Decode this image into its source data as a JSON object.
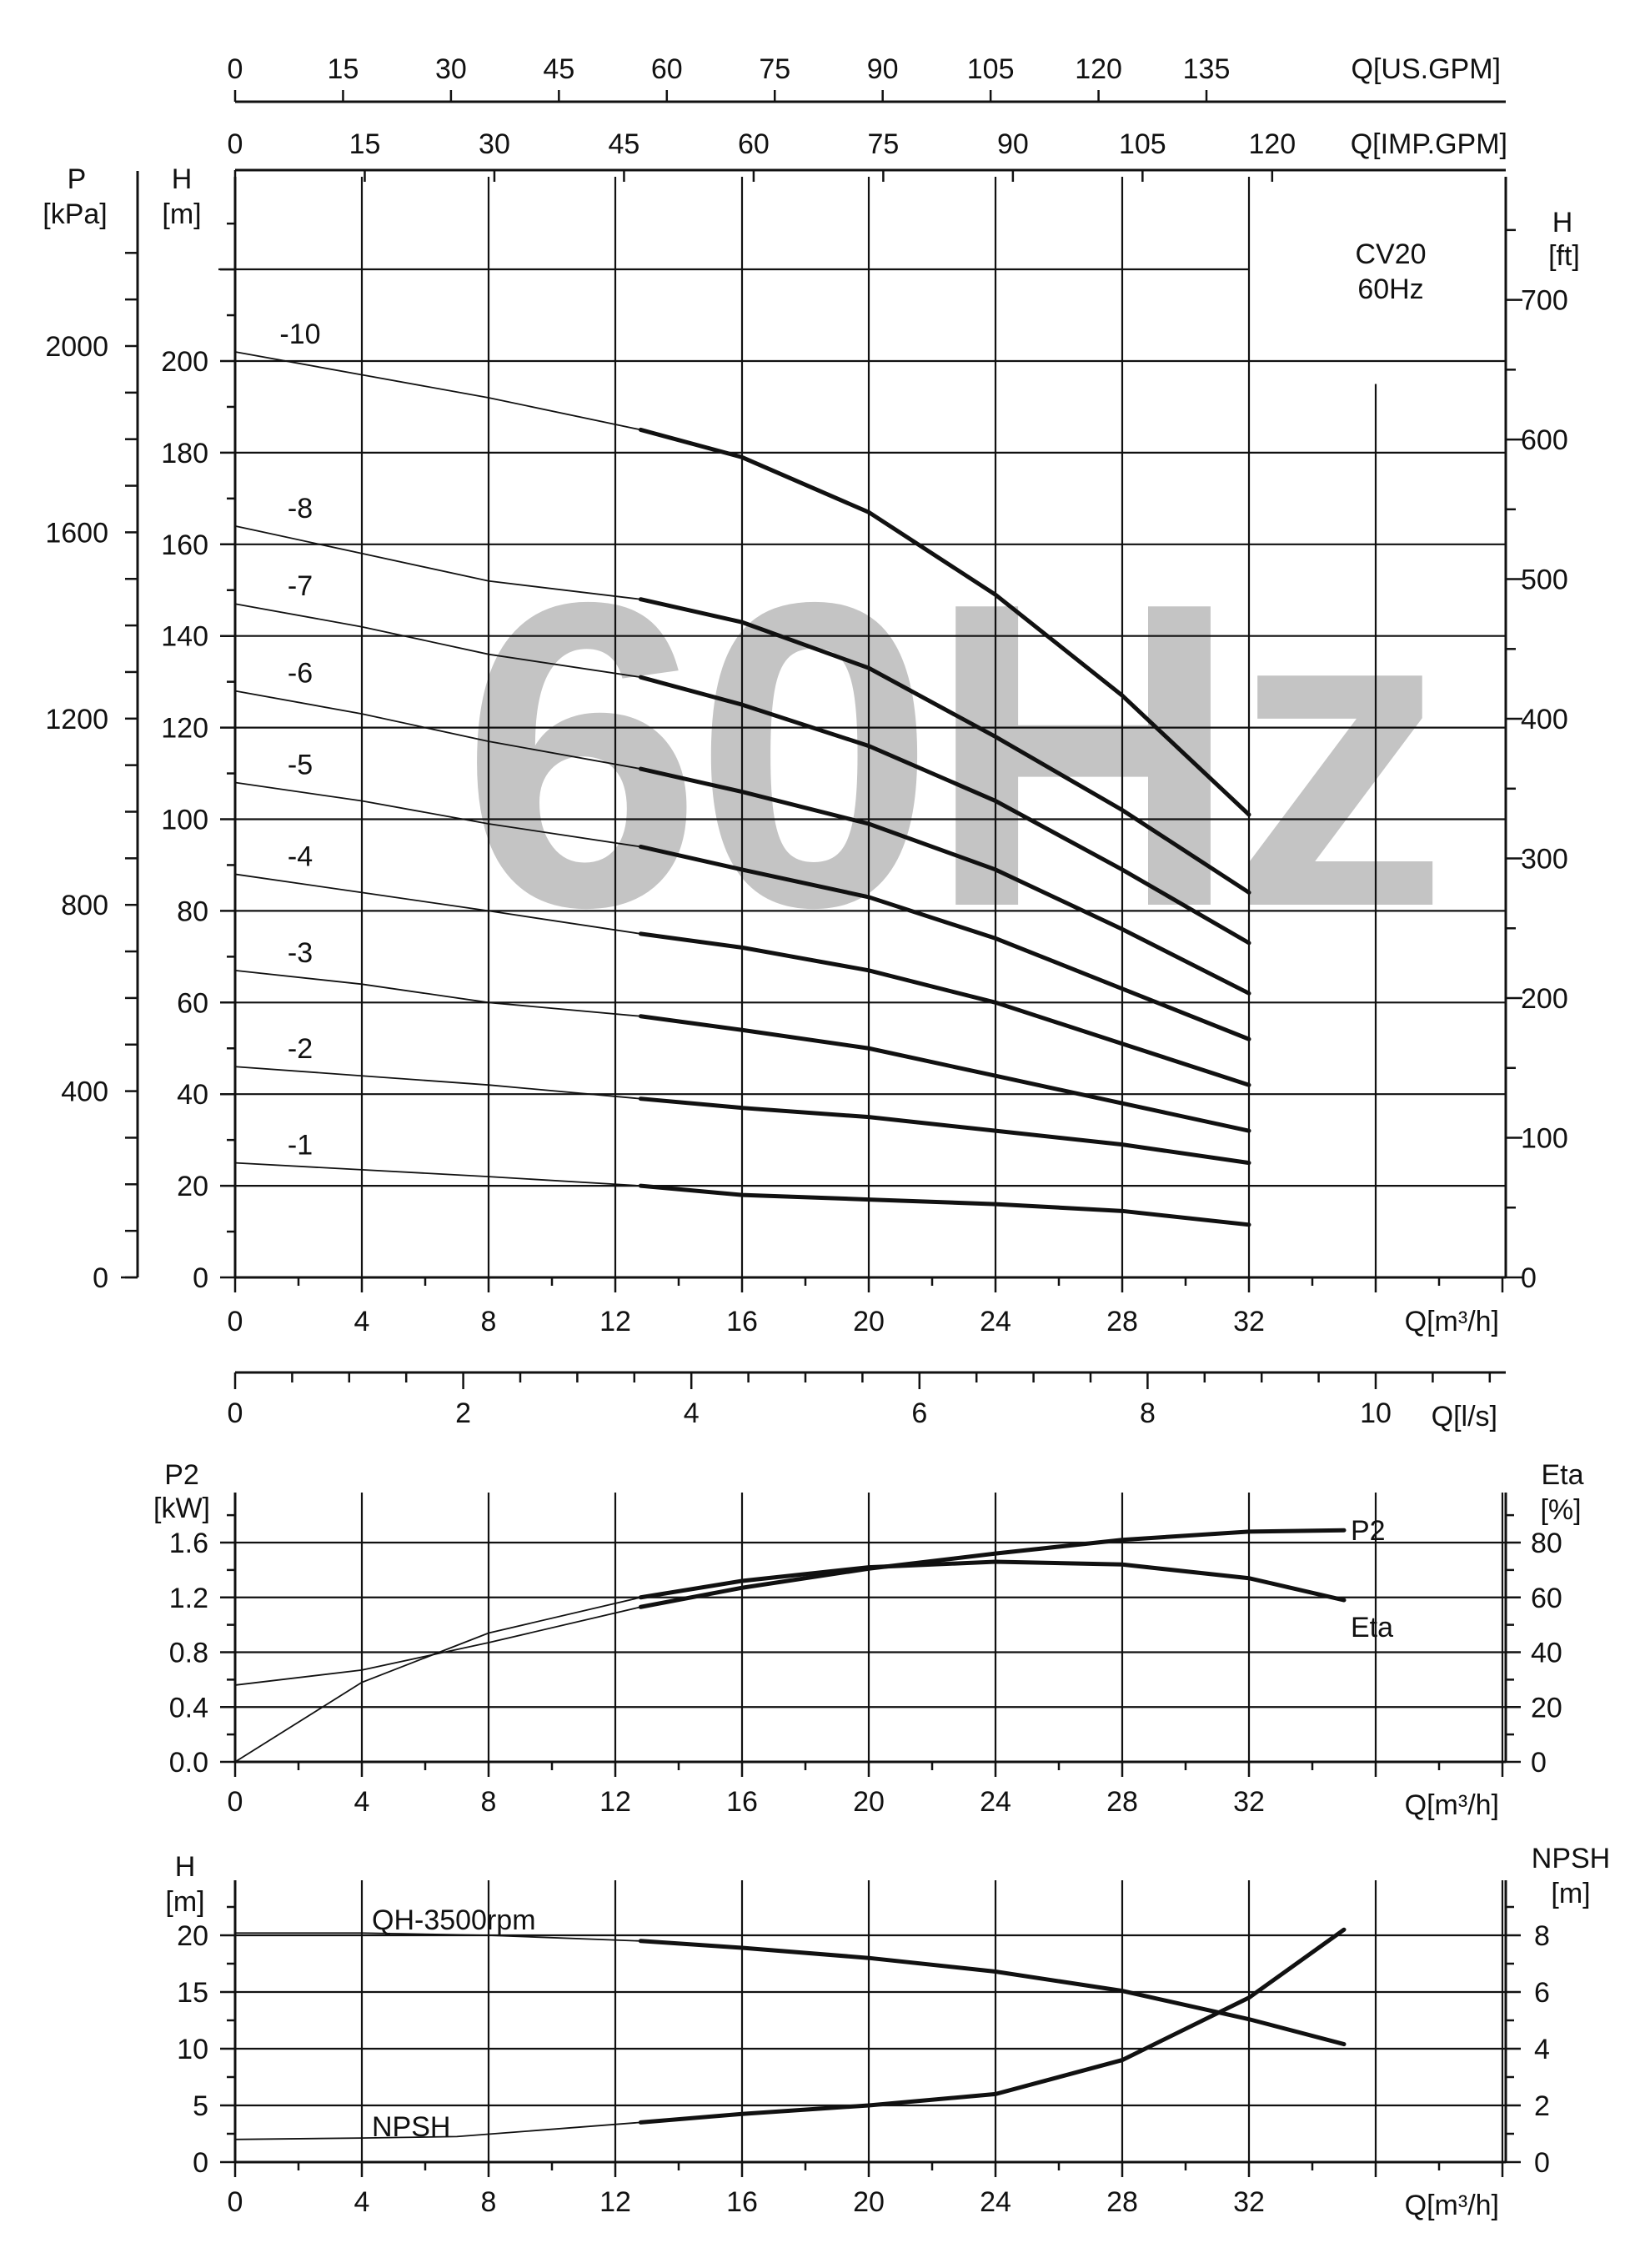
{
  "chart_data": [
    {
      "type": "line",
      "model_label": "CV20",
      "frequency_label": "60Hz",
      "watermark": "60Hz",
      "xlabel": "Q[m³/h]",
      "ylabel_left_pressure": "P",
      "ylabel_left_pressure_unit": "[kPa]",
      "ylabel_left_head": "H",
      "ylabel_left_head_unit": "[m]",
      "ylabel_right_head": "H",
      "ylabel_right_head_unit": "[ft]",
      "xlim": [
        0,
        40
      ],
      "ylim": [
        0,
        240
      ],
      "x_ticks": [
        0,
        4,
        8,
        12,
        16,
        20,
        24,
        28,
        32
      ],
      "y_ticks_m": [
        0,
        20,
        40,
        60,
        80,
        100,
        120,
        140,
        160,
        180,
        200
      ],
      "y_ticks_kpa": [
        0,
        400,
        800,
        1200,
        1600,
        2000
      ],
      "y_ticks_ft": [
        0,
        100,
        200,
        300,
        400,
        500,
        600,
        700
      ],
      "top_axis_usgpm": {
        "label": "Q[US.GPM]",
        "ticks": [
          0,
          15,
          30,
          45,
          60,
          75,
          90,
          105,
          120,
          135
        ]
      },
      "top_axis_impgpm": {
        "label": "Q[IMP.GPM]",
        "ticks": [
          0,
          15,
          30,
          45,
          60,
          75,
          90,
          105,
          120
        ]
      },
      "bottom_axis_ls": {
        "label": "Q[l/s]",
        "ticks": [
          0,
          2,
          4,
          6,
          8,
          10
        ]
      },
      "operating_range": [
        12.8,
        32
      ],
      "series": [
        {
          "name": "-10",
          "x": [
            0,
            4,
            8,
            12.8,
            16,
            20,
            24,
            28,
            32
          ],
          "y": [
            202,
            197,
            192,
            185,
            179,
            167,
            149,
            127,
            101
          ]
        },
        {
          "name": "-8",
          "x": [
            0,
            4,
            8,
            12.8,
            16,
            20,
            24,
            28,
            32
          ],
          "y": [
            164,
            158,
            152,
            148,
            143,
            133,
            118,
            102,
            84
          ]
        },
        {
          "name": "-7",
          "x": [
            0,
            4,
            8,
            12.8,
            16,
            20,
            24,
            28,
            32
          ],
          "y": [
            147,
            142,
            136,
            131,
            125,
            116,
            104,
            89,
            73
          ]
        },
        {
          "name": "-6",
          "x": [
            0,
            4,
            8,
            12.8,
            16,
            20,
            24,
            28,
            32
          ],
          "y": [
            128,
            123,
            117,
            111,
            106,
            99,
            89,
            76,
            62
          ]
        },
        {
          "name": "-5",
          "x": [
            0,
            4,
            8,
            12.8,
            16,
            20,
            24,
            28,
            32
          ],
          "y": [
            108,
            104,
            99,
            94,
            89,
            83,
            74,
            63,
            52
          ]
        },
        {
          "name": "-4",
          "x": [
            0,
            4,
            8,
            12.8,
            16,
            20,
            24,
            28,
            32
          ],
          "y": [
            88,
            84,
            80,
            75,
            72,
            67,
            60,
            51,
            42
          ]
        },
        {
          "name": "-3",
          "x": [
            0,
            4,
            8,
            12.8,
            16,
            20,
            24,
            28,
            32
          ],
          "y": [
            67,
            64,
            60,
            57,
            54,
            50,
            44,
            38,
            32
          ]
        },
        {
          "name": "-2",
          "x": [
            0,
            4,
            8,
            12.8,
            16,
            20,
            24,
            28,
            32
          ],
          "y": [
            46,
            44,
            42,
            39,
            37,
            35,
            32,
            29,
            25
          ]
        },
        {
          "name": "-1",
          "x": [
            0,
            4,
            8,
            12.8,
            16,
            20,
            24,
            28,
            32
          ],
          "y": [
            25,
            23.5,
            22,
            20,
            18,
            17,
            16,
            14.5,
            11.5
          ]
        }
      ]
    },
    {
      "type": "line",
      "xlabel": "Q[m³/h]",
      "ylabel_left": "P2",
      "ylabel_left_unit": "[kW]",
      "ylabel_right": "Eta",
      "ylabel_right_unit": "[%]",
      "xlim": [
        0,
        40
      ],
      "ylim_left": [
        0,
        2.0
      ],
      "ylim_right": [
        0,
        100
      ],
      "x_ticks": [
        0,
        4,
        8,
        12,
        16,
        20,
        24,
        28,
        32
      ],
      "y_ticks_left": [
        "0.0",
        "0.4",
        "0.8",
        "1.2",
        "1.6"
      ],
      "y_ticks_right": [
        0,
        20,
        40,
        60,
        80
      ],
      "operating_range": [
        12.8,
        35
      ],
      "series": [
        {
          "name": "P2",
          "x": [
            0,
            4,
            8,
            12.8,
            16,
            20,
            24,
            28,
            32,
            35
          ],
          "y": [
            0.56,
            0.67,
            0.87,
            1.13,
            1.27,
            1.41,
            1.52,
            1.62,
            1.68,
            1.69
          ]
        },
        {
          "name": "Eta",
          "x": [
            0,
            4,
            8,
            12.8,
            16,
            20,
            24,
            28,
            32,
            35
          ],
          "y": [
            0,
            29,
            47,
            60,
            66,
            71,
            73,
            72,
            67,
            59
          ]
        }
      ]
    },
    {
      "type": "line",
      "xlabel": "Q[m³/h]",
      "ylabel_left": "H",
      "ylabel_left_unit": "[m]",
      "ylabel_right": "NPSH",
      "ylabel_right_unit": "[m]",
      "xlim": [
        0,
        40
      ],
      "ylim_left": [
        0,
        25
      ],
      "ylim_right": [
        0,
        10
      ],
      "x_ticks": [
        0,
        4,
        8,
        12,
        16,
        20,
        24,
        28,
        32
      ],
      "y_ticks_left": [
        0,
        5,
        10,
        15,
        20
      ],
      "y_ticks_right": [
        0,
        2,
        4,
        6,
        8
      ],
      "operating_range": [
        12.8,
        35
      ],
      "series": [
        {
          "name": "QH-3500rpm",
          "x": [
            0,
            4,
            8,
            12.8,
            16,
            20,
            24,
            28,
            32,
            35
          ],
          "y": [
            20.2,
            20.2,
            20.0,
            19.5,
            18.9,
            18.0,
            16.8,
            15.1,
            12.6,
            10.4
          ]
        },
        {
          "name": "NPSH",
          "x": [
            0,
            4,
            7,
            12.8,
            16,
            20,
            24,
            28,
            32,
            35
          ],
          "y": [
            0.8,
            0.85,
            0.9,
            1.4,
            1.7,
            2.0,
            2.4,
            3.6,
            5.8,
            8.2
          ]
        }
      ]
    }
  ]
}
